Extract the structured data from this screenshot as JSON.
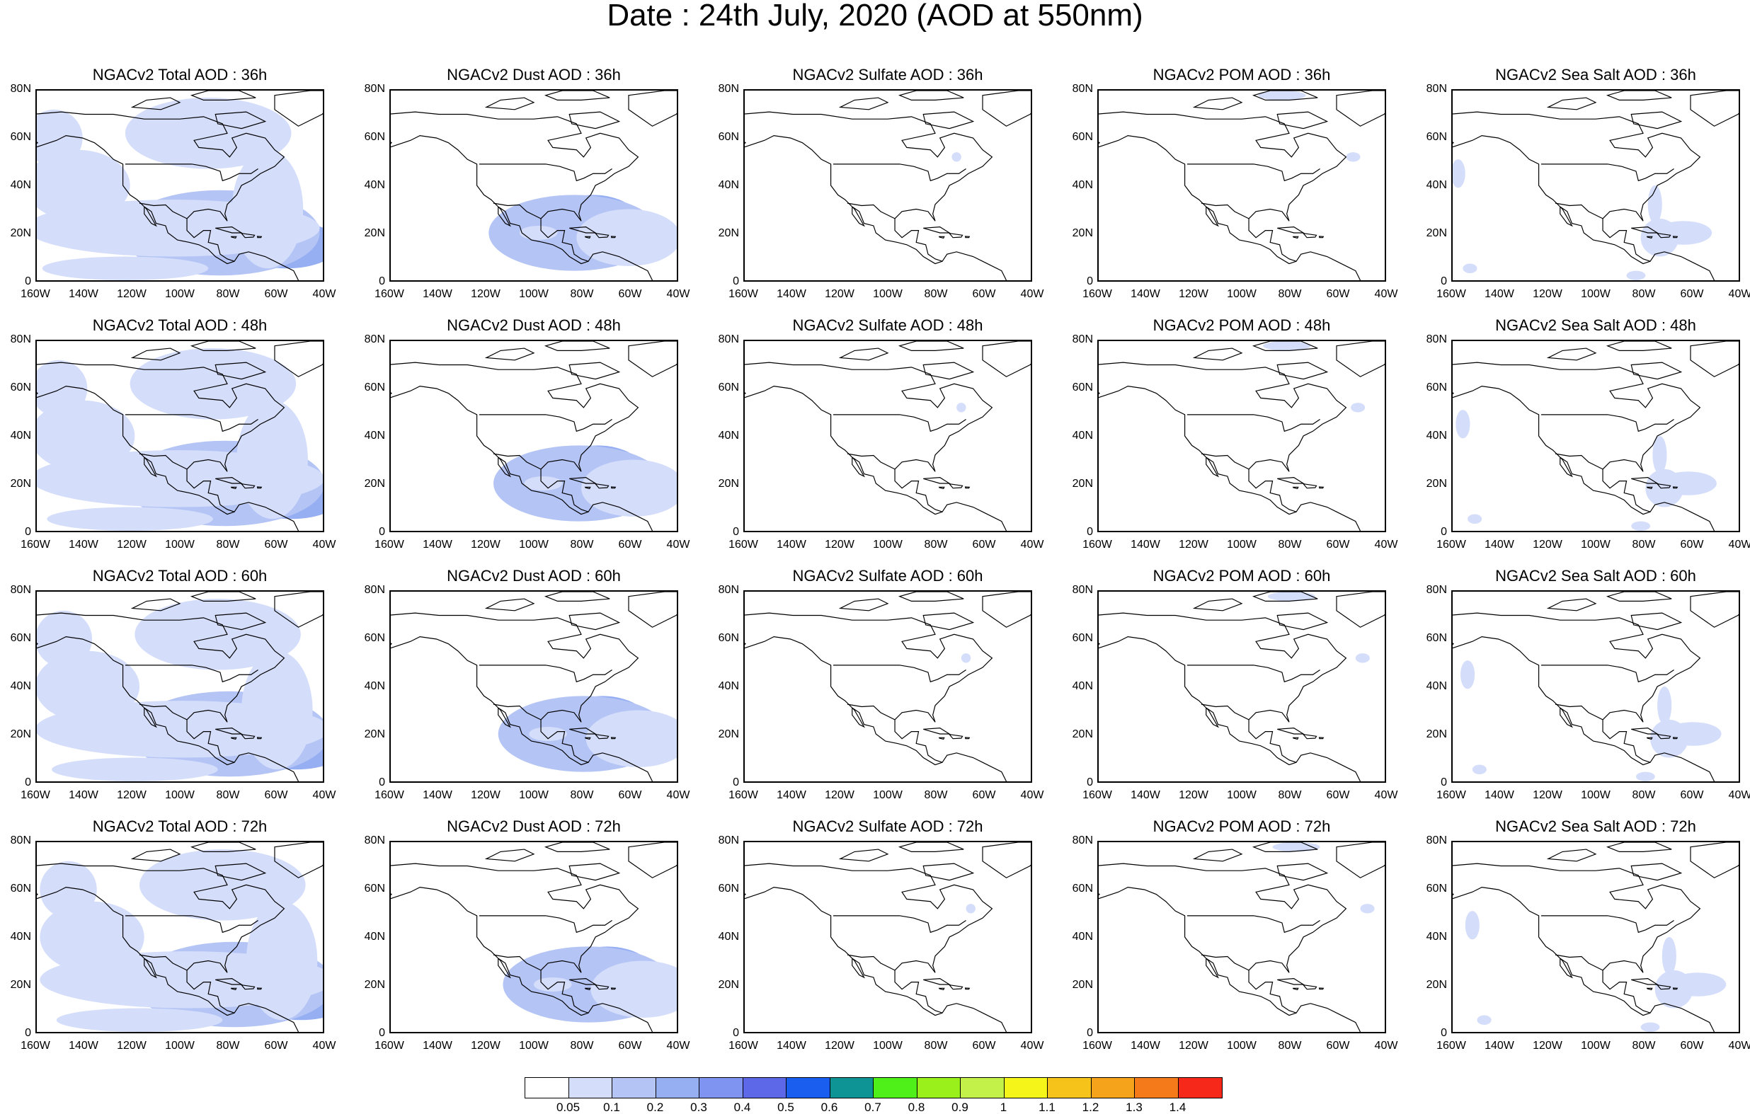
{
  "title": "Date : 24th July, 2020 (AOD at 550nm)",
  "lat_labels": [
    "80N",
    "60N",
    "40N",
    "20N",
    "0"
  ],
  "lon_labels": [
    "160W",
    "140W",
    "120W",
    "100W",
    "80W",
    "60W",
    "40W"
  ],
  "panels": [
    [
      "NGACv2 Total AOD : 36h",
      "NGACv2 Dust AOD : 36h",
      "NGACv2 Sulfate AOD : 36h",
      "NGACv2 POM AOD : 36h",
      "NGACv2 Sea Salt AOD : 36h"
    ],
    [
      "NGACv2 Total AOD : 48h",
      "NGACv2 Dust AOD : 48h",
      "NGACv2 Sulfate AOD : 48h",
      "NGACv2 POM AOD : 48h",
      "NGACv2 Sea Salt AOD : 48h"
    ],
    [
      "NGACv2 Total AOD : 60h",
      "NGACv2 Dust AOD : 60h",
      "NGACv2 Sulfate AOD : 60h",
      "NGACv2 POM AOD : 60h",
      "NGACv2 Sea Salt AOD : 60h"
    ],
    [
      "NGACv2 Total AOD : 72h",
      "NGACv2 Dust AOD : 72h",
      "NGACv2 Sulfate AOD : 72h",
      "NGACv2 POM AOD : 72h",
      "NGACv2 Sea Salt  AOD : 72h"
    ]
  ],
  "colorbar": {
    "labels": [
      "0.05",
      "0.1",
      "0.2",
      "0.3",
      "0.4",
      "0.5",
      "0.6",
      "0.7",
      "0.8",
      "0.9",
      "1",
      "1.1",
      "1.2",
      "1.3",
      "1.4"
    ],
    "colors": [
      "#ffffff",
      "#d4ddfa",
      "#b4c4f5",
      "#96aef2",
      "#7f94f0",
      "#5d68e8",
      "#1a5ef0",
      "#0e9494",
      "#4ff01a",
      "#99f01a",
      "#c4f04a",
      "#f5f51a",
      "#f5c31a",
      "#f5a31a",
      "#f57a1a",
      "#f5281a"
    ]
  }
}
